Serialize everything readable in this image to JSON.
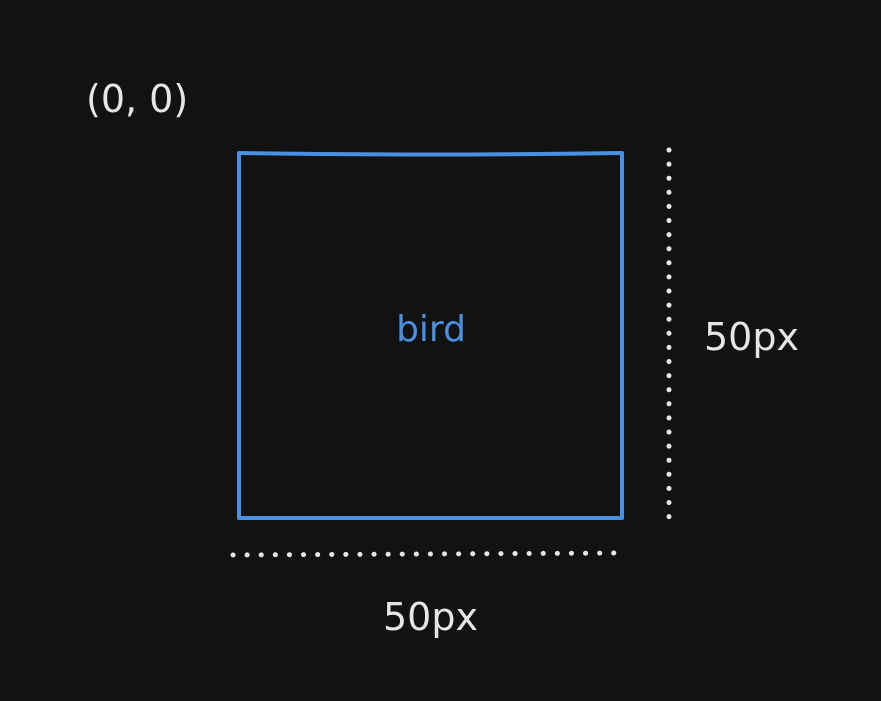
{
  "diagram": {
    "origin_label": "(0, 0)",
    "box_label": "bird",
    "height_label": "50px",
    "width_label": "50px",
    "colors": {
      "background": "#121212",
      "box_stroke": "#4a90e2",
      "box_text": "#4a90e2",
      "annotation": "#e6e6e6"
    }
  }
}
